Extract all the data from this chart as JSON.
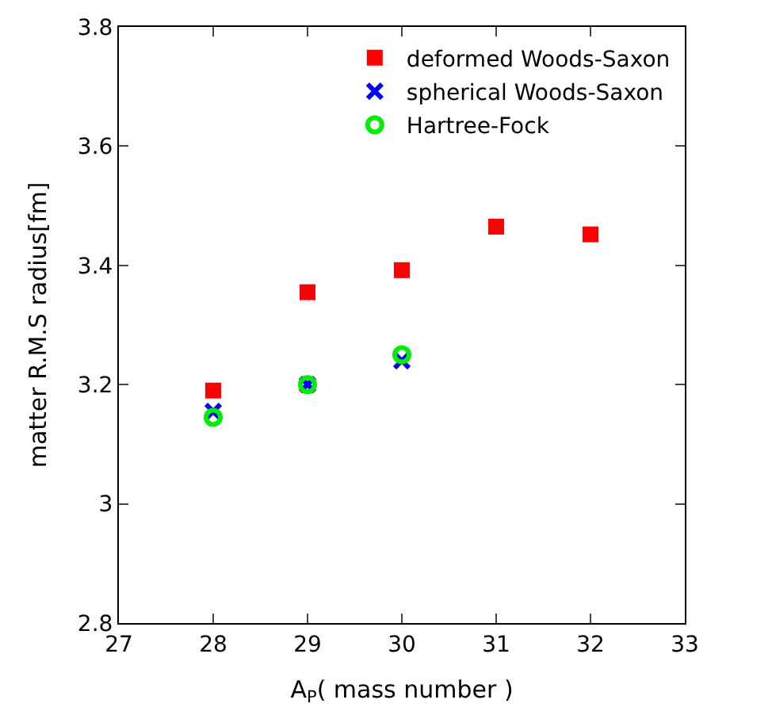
{
  "chart_data": {
    "type": "scatter",
    "xlabel": "A$_{P}$( mass number )",
    "ylabel": "matter R.M.S radius[fm]",
    "x": [
      28,
      29,
      30,
      31,
      32
    ],
    "series": [
      {
        "name": "deformed Woods-Saxon",
        "color": "#ff0000",
        "marker": "square",
        "values": [
          3.19,
          3.355,
          3.392,
          3.465,
          3.452
        ]
      },
      {
        "name": "spherical Woods-Saxon",
        "color": "#0000ff",
        "marker": "cross",
        "values": [
          3.155,
          3.2,
          3.24,
          null,
          null
        ]
      },
      {
        "name": "Hartree-Fock",
        "color": "#00ee00",
        "marker": "circle",
        "values": [
          3.145,
          3.2,
          3.25,
          null,
          null
        ]
      }
    ],
    "xlim": [
      27,
      33
    ],
    "xticks": [
      27,
      28,
      29,
      30,
      31,
      32,
      33
    ],
    "ylim": [
      2.8,
      3.8
    ],
    "yticks": [
      2.8,
      3,
      3.2,
      3.4,
      3.6,
      3.8
    ],
    "legend": "top right"
  }
}
